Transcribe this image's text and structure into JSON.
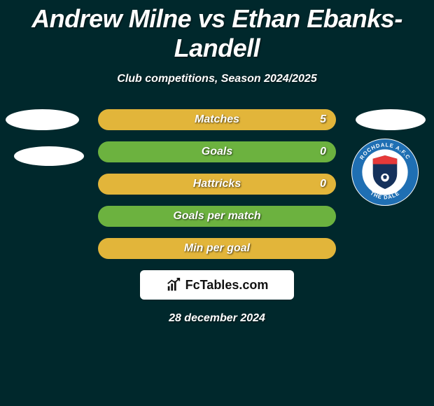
{
  "colors": {
    "page_bg": "#00282c",
    "bar_track": "#0b3a3d",
    "bar_fill_orange": "#e2b53a",
    "bar_fill_green": "#6cb23f",
    "club_ring": "#1f6fb3",
    "text": "#ffffff"
  },
  "title": "Andrew Milne vs Ethan Ebanks-Landell",
  "subtitle": "Club competitions, Season 2024/2025",
  "club_badge": {
    "name": "Rochdale A.F.C",
    "ring_text_top": "ROCHDALE A.F.C",
    "ring_text_bottom": "THE DALE"
  },
  "stats": [
    {
      "label": "Matches",
      "value": "5",
      "fill_pct": 100,
      "color": "#e2b53a"
    },
    {
      "label": "Goals",
      "value": "0",
      "fill_pct": 100,
      "color": "#6cb23f"
    },
    {
      "label": "Hattricks",
      "value": "0",
      "fill_pct": 100,
      "color": "#e2b53a"
    },
    {
      "label": "Goals per match",
      "value": "",
      "fill_pct": 100,
      "color": "#6cb23f"
    },
    {
      "label": "Min per goal",
      "value": "",
      "fill_pct": 100,
      "color": "#e2b53a"
    }
  ],
  "branding": "FcTables.com",
  "date": "28 december 2024"
}
